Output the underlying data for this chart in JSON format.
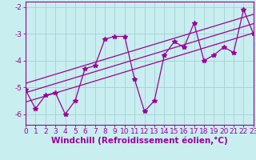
{
  "xlabel": "Windchill (Refroidissement éolien,°C)",
  "ylabel": "",
  "background_color": "#c8eef0",
  "line_color": "#990099",
  "grid_color": "#aad4d8",
  "x_data": [
    0,
    1,
    2,
    3,
    4,
    5,
    6,
    7,
    8,
    9,
    10,
    11,
    12,
    13,
    14,
    15,
    16,
    17,
    18,
    19,
    20,
    21,
    22,
    23
  ],
  "y_scatter": [
    -5.1,
    -5.8,
    -5.3,
    -5.2,
    -6.0,
    -5.5,
    -4.3,
    -4.2,
    -3.2,
    -3.1,
    -3.1,
    -4.7,
    -5.9,
    -5.5,
    -3.8,
    -3.3,
    -3.5,
    -2.6,
    -4.0,
    -3.8,
    -3.5,
    -3.7,
    -2.1,
    -3.0
  ],
  "regression_lines": [
    {
      "slope": 0.112,
      "intercept": -5.55
    },
    {
      "slope": 0.112,
      "intercept": -5.2
    },
    {
      "slope": 0.112,
      "intercept": -4.85
    }
  ],
  "xlim": [
    0,
    23
  ],
  "ylim": [
    -6.4,
    -1.8
  ],
  "yticks": [
    -6,
    -5,
    -4,
    -3,
    -2
  ],
  "xticks": [
    0,
    1,
    2,
    3,
    4,
    5,
    6,
    7,
    8,
    9,
    10,
    11,
    12,
    13,
    14,
    15,
    16,
    17,
    18,
    19,
    20,
    21,
    22,
    23
  ],
  "tick_fontsize": 6.5,
  "xlabel_fontsize": 7.5,
  "marker": "*",
  "marker_size": 4,
  "line_width": 0.9
}
